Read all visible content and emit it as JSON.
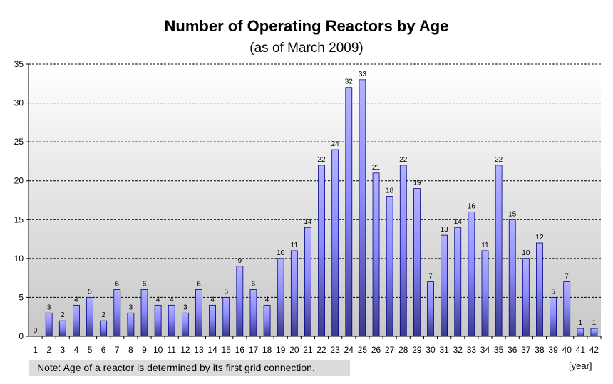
{
  "chart_data": {
    "type": "bar",
    "title": "Number of Operating Reactors by Age",
    "subtitle": "(as of March 2009)",
    "xlabel": "",
    "ylabel": "",
    "x_unit": "[year]",
    "ylim": [
      0,
      35
    ],
    "y_ticks": [
      0,
      5,
      10,
      15,
      20,
      25,
      30,
      35
    ],
    "grid": "horizontal dashed",
    "categories": [
      "1",
      "2",
      "3",
      "4",
      "5",
      "6",
      "7",
      "8",
      "9",
      "10",
      "11",
      "12",
      "13",
      "14",
      "15",
      "16",
      "17",
      "18",
      "19",
      "20",
      "21",
      "22",
      "23",
      "24",
      "25",
      "26",
      "27",
      "28",
      "29",
      "30",
      "31",
      "32",
      "33",
      "34",
      "35",
      "36",
      "37",
      "38",
      "39",
      "40",
      "41",
      "42"
    ],
    "values": [
      0,
      3,
      2,
      4,
      5,
      2,
      6,
      3,
      6,
      4,
      4,
      3,
      6,
      4,
      5,
      9,
      6,
      4,
      10,
      11,
      14,
      22,
      24,
      32,
      33,
      21,
      18,
      22,
      19,
      7,
      13,
      14,
      16,
      11,
      22,
      15,
      10,
      12,
      5,
      7,
      1,
      1
    ],
    "note": "Note: Age of a reactor is determined by its first grid connection.",
    "colors": {
      "bar_top": "#b3b3ff",
      "bar_mid": "#8c8cff",
      "bar_bottom": "#3a3a8c",
      "bar_edge": "#000080",
      "plot_bg_top": "#ffffff",
      "plot_bg_bottom": "#c8c8c8"
    }
  }
}
